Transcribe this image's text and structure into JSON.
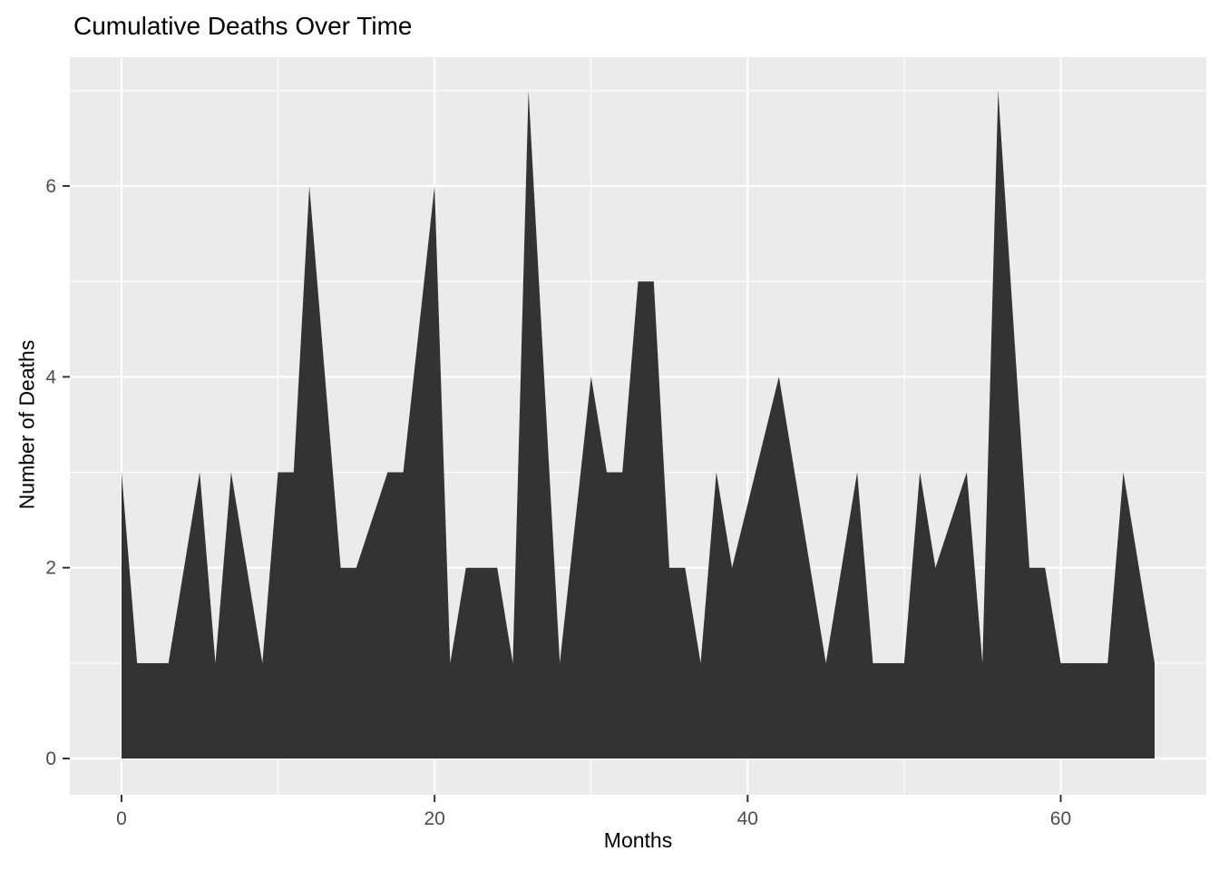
{
  "chart_data": {
    "type": "area",
    "title": "Cumulative Deaths Over Time",
    "xlabel": "Months",
    "ylabel": "Number of Deaths",
    "x_ticks": [
      0,
      20,
      40,
      60
    ],
    "y_ticks": [
      0,
      2,
      4,
      6
    ],
    "x_minor_gridlines": [
      10,
      30,
      50
    ],
    "y_minor_gridlines": [
      1,
      3,
      5,
      7
    ],
    "xlim": [
      -3.3,
      69.3
    ],
    "ylim": [
      -0.38,
      7.35
    ],
    "baseline": 0,
    "grid": "on",
    "legend_position": "none",
    "series": [
      {
        "name": "deaths",
        "points": [
          [
            0,
            3
          ],
          [
            1,
            1
          ],
          [
            3,
            1
          ],
          [
            5,
            3
          ],
          [
            6,
            1
          ],
          [
            7,
            3
          ],
          [
            9,
            1
          ],
          [
            10,
            3
          ],
          [
            11,
            3
          ],
          [
            12,
            6
          ],
          [
            14,
            2
          ],
          [
            15,
            2
          ],
          [
            17,
            3
          ],
          [
            18,
            3
          ],
          [
            20,
            6
          ],
          [
            21,
            1
          ],
          [
            22,
            2
          ],
          [
            24,
            2
          ],
          [
            25,
            1
          ],
          [
            26,
            7
          ],
          [
            28,
            1
          ],
          [
            30,
            4
          ],
          [
            31,
            3
          ],
          [
            32,
            3
          ],
          [
            33,
            5
          ],
          [
            34,
            5
          ],
          [
            35,
            2
          ],
          [
            36,
            2
          ],
          [
            37,
            1
          ],
          [
            38,
            3
          ],
          [
            39,
            2
          ],
          [
            42,
            4
          ],
          [
            45,
            1
          ],
          [
            47,
            3
          ],
          [
            48,
            1
          ],
          [
            50,
            1
          ],
          [
            51,
            3
          ],
          [
            52,
            2
          ],
          [
            54,
            3
          ],
          [
            55,
            1
          ],
          [
            56,
            7
          ],
          [
            58,
            2
          ],
          [
            59,
            2
          ],
          [
            60,
            1
          ],
          [
            63,
            1
          ],
          [
            64,
            3
          ],
          [
            66,
            1
          ]
        ]
      }
    ],
    "colors": {
      "area_fill": "#333333",
      "panel_background": "#EBEBEB",
      "gridline": "#FFFFFF",
      "tick_mark": "#333333",
      "tick_label": "#4D4D4D",
      "axis_text": "#000000",
      "page_background": "#FFFFFF"
    }
  }
}
